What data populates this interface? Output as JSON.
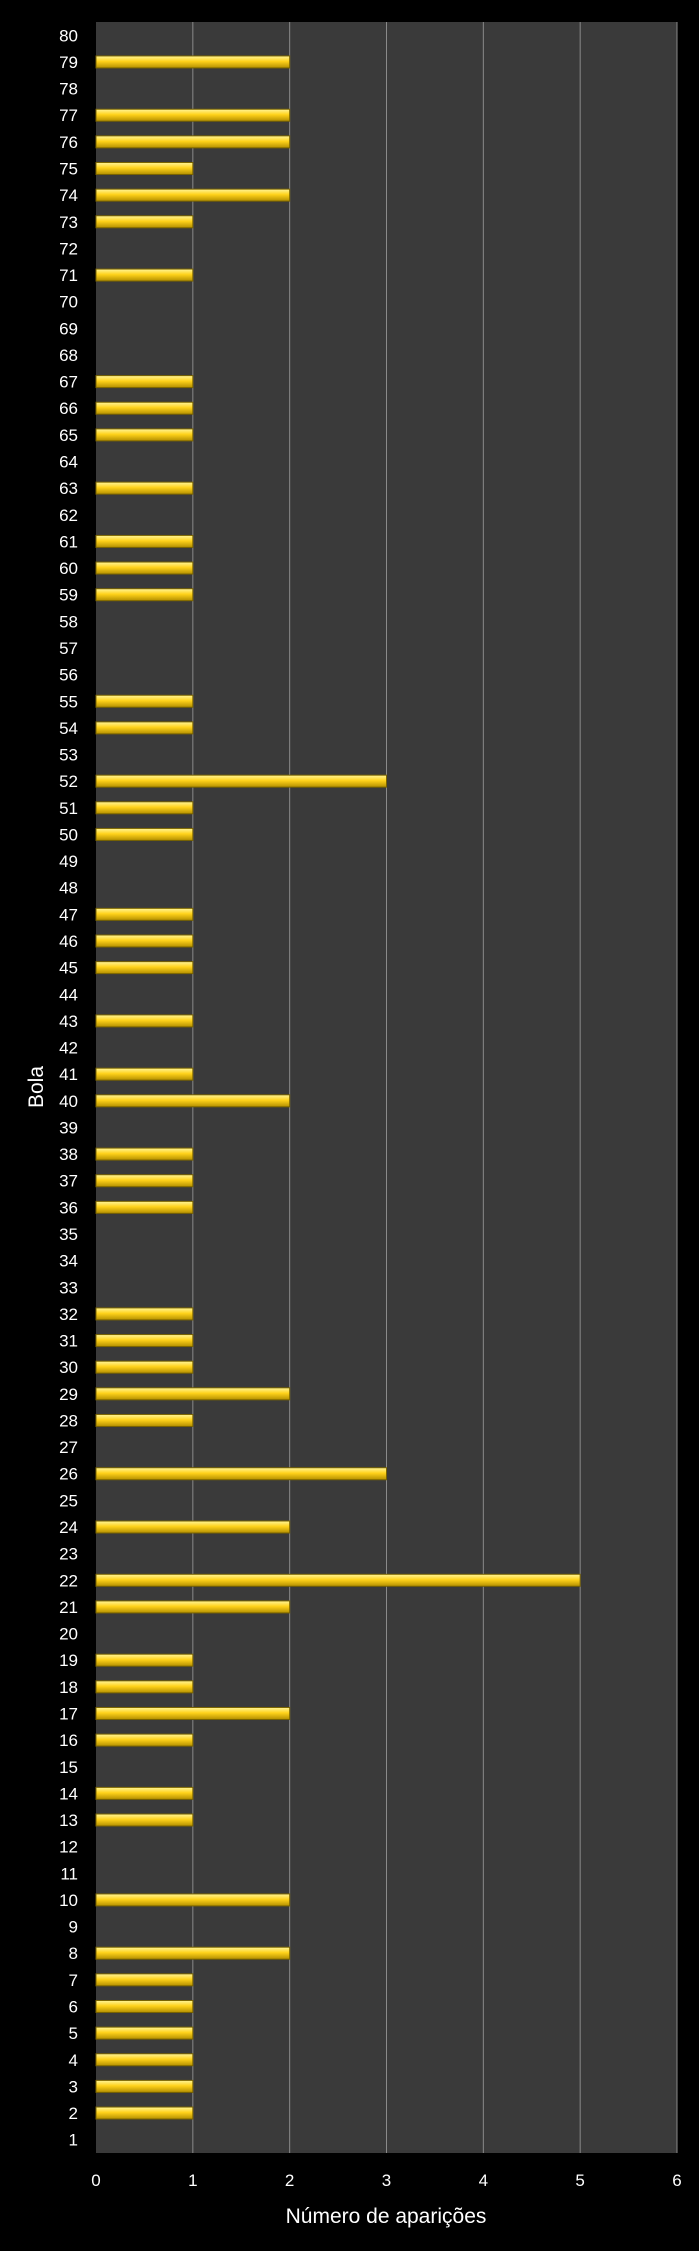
{
  "chart_data": {
    "type": "bar",
    "orientation": "horizontal",
    "title": "",
    "xlabel": "Número de aparições",
    "ylabel": "Bola",
    "xlim": [
      0,
      6
    ],
    "xticks": [
      0,
      1,
      2,
      3,
      4,
      5,
      6
    ],
    "grid": true,
    "legend": "none",
    "colors": {
      "background": "#000000",
      "plot_area": "#3a3a3a",
      "gridline": "#8a8a8a",
      "bar_fill": "#ffd21a",
      "bar_highlight": "#fff59a",
      "bar_edge": "#7a6400",
      "text": "#ffffff"
    },
    "categories": [
      "1",
      "2",
      "3",
      "4",
      "5",
      "6",
      "7",
      "8",
      "9",
      "10",
      "11",
      "12",
      "13",
      "14",
      "15",
      "16",
      "17",
      "18",
      "19",
      "20",
      "21",
      "22",
      "23",
      "24",
      "25",
      "26",
      "27",
      "28",
      "29",
      "30",
      "31",
      "32",
      "33",
      "34",
      "35",
      "36",
      "37",
      "38",
      "39",
      "40",
      "41",
      "42",
      "43",
      "44",
      "45",
      "46",
      "47",
      "48",
      "49",
      "50",
      "51",
      "52",
      "53",
      "54",
      "55",
      "56",
      "57",
      "58",
      "59",
      "60",
      "61",
      "62",
      "63",
      "64",
      "65",
      "66",
      "67",
      "68",
      "69",
      "70",
      "71",
      "72",
      "73",
      "74",
      "75",
      "76",
      "77",
      "78",
      "79",
      "80"
    ],
    "values": [
      0,
      1,
      1,
      1,
      1,
      1,
      1,
      2,
      0,
      2,
      0,
      0,
      1,
      1,
      0,
      1,
      2,
      1,
      1,
      0,
      2,
      5,
      0,
      2,
      0,
      3,
      0,
      1,
      2,
      1,
      1,
      1,
      0,
      0,
      0,
      1,
      1,
      1,
      0,
      2,
      1,
      0,
      1,
      0,
      1,
      1,
      1,
      0,
      0,
      1,
      1,
      3,
      0,
      1,
      1,
      0,
      0,
      0,
      1,
      1,
      1,
      0,
      1,
      0,
      1,
      1,
      1,
      0,
      0,
      0,
      1,
      0,
      1,
      2,
      1,
      2,
      2,
      0,
      2,
      0
    ]
  }
}
